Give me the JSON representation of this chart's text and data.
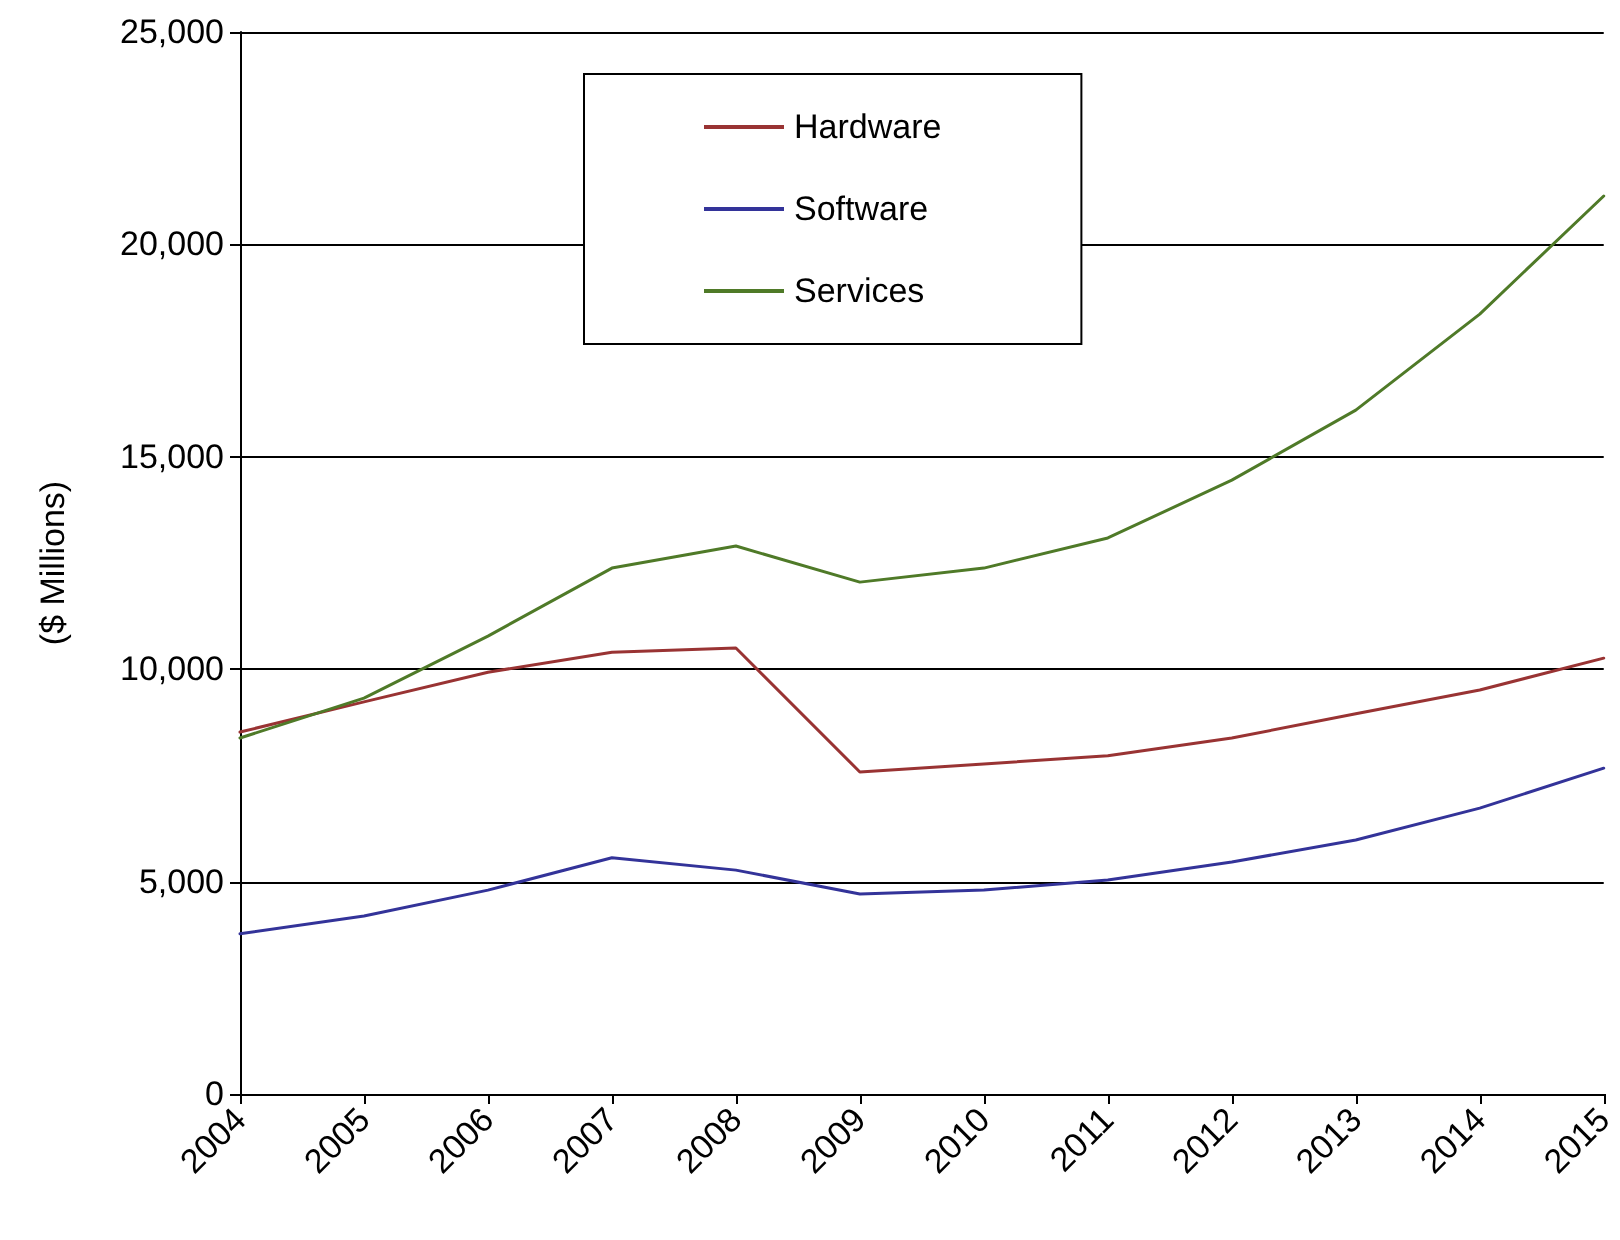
{
  "chart_data": {
    "type": "line",
    "ylabel": "($ Millions)",
    "categories": [
      "2004",
      "2005",
      "2006",
      "2007",
      "2008",
      "2009",
      "2010",
      "2011",
      "2012",
      "2013",
      "2014",
      "2015"
    ],
    "series": [
      {
        "name": "Hardware",
        "color": "#993333",
        "values": [
          8520,
          9230,
          9930,
          10400,
          10500,
          7580,
          7770,
          7960,
          8380,
          8950,
          9510,
          10260
        ]
      },
      {
        "name": "Software",
        "color": "#333399",
        "values": [
          3770,
          4190,
          4800,
          5560,
          5270,
          4710,
          4800,
          5040,
          5460,
          5980,
          6730,
          7670
        ]
      },
      {
        "name": "Services",
        "color": "#4f7a28",
        "values": [
          8380,
          9320,
          10780,
          12380,
          12900,
          12050,
          12380,
          13090,
          14450,
          16100,
          18360,
          21140
        ]
      }
    ],
    "ylim": [
      0,
      25000
    ],
    "yticks": [
      0,
      {
        "value": 5000,
        "label": "5,000"
      },
      {
        "value": 10000,
        "label": "10,000"
      },
      {
        "value": 15000,
        "label": "15,000"
      },
      {
        "value": 20000,
        "label": "20,000"
      },
      {
        "value": 25000,
        "label": "25,000"
      }
    ],
    "grid": "y",
    "legend": "top",
    "marker": "none",
    "line_style": "solid"
  }
}
